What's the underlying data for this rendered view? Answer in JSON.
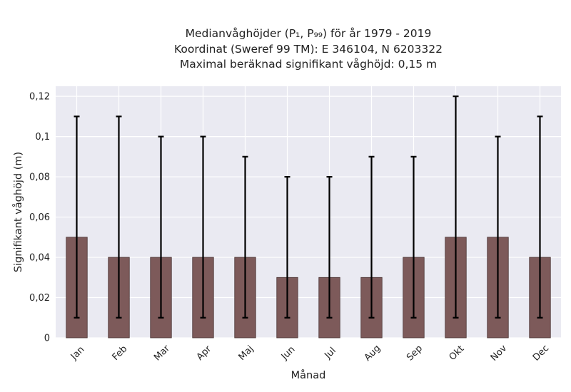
{
  "chart_data": {
    "type": "bar",
    "title_lines": [
      "Medianvåghöjder (P₁, P₉₉) för år 1979 - 2019",
      "Koordinat (Sweref 99 TM): E 346104, N 6203322",
      "Maximal beräknad signifikant våghöjd: 0,15 m"
    ],
    "xlabel": "Månad",
    "ylabel": "Signifikant våghöjd (m)",
    "categories": [
      "Jan",
      "Feb",
      "Mar",
      "Apr",
      "Maj",
      "Jun",
      "Jul",
      "Aug",
      "Sep",
      "Okt",
      "Nov",
      "Dec"
    ],
    "values": [
      0.05,
      0.04,
      0.04,
      0.04,
      0.04,
      0.03,
      0.03,
      0.03,
      0.04,
      0.05,
      0.05,
      0.04
    ],
    "error_low": [
      0.01,
      0.01,
      0.01,
      0.01,
      0.01,
      0.01,
      0.01,
      0.01,
      0.01,
      0.01,
      0.01,
      0.01
    ],
    "error_high": [
      0.11,
      0.11,
      0.1,
      0.1,
      0.09,
      0.08,
      0.08,
      0.09,
      0.09,
      0.12,
      0.1,
      0.11
    ],
    "ylim": [
      0,
      0.125
    ],
    "yticks": [
      0,
      0.02,
      0.04,
      0.06,
      0.08,
      0.1,
      0.12
    ],
    "ytick_labels": [
      "0",
      "0,02",
      "0,04",
      "0,06",
      "0,08",
      "0,1",
      "0,12"
    ],
    "grid": true,
    "colors": {
      "bar": "#7d5a5a",
      "bar_edge": "#4a3434",
      "error_bar": "#000000",
      "plot_background": "#eaeaf2",
      "grid": "#ffffff"
    }
  }
}
